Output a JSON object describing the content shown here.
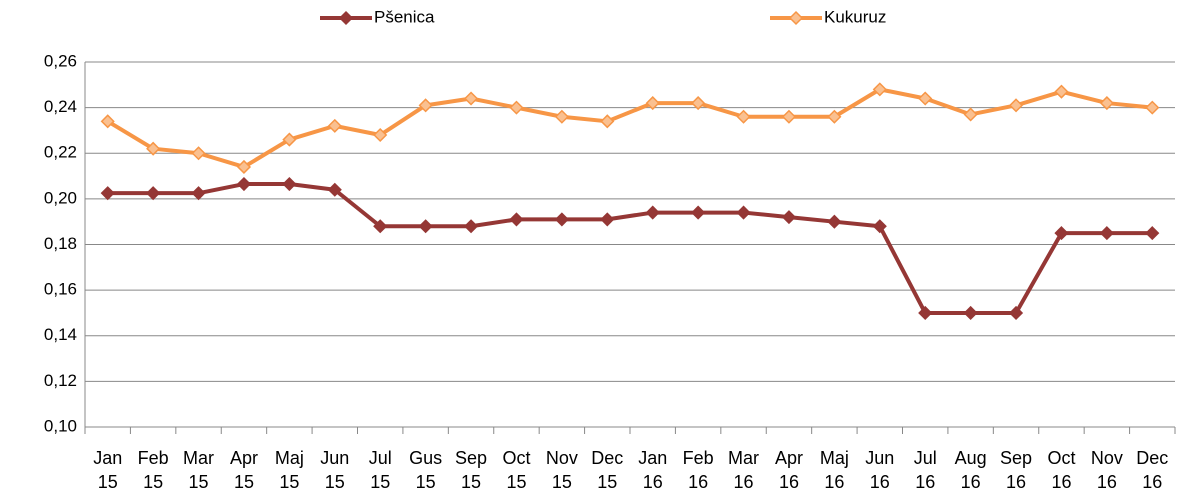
{
  "chart_data": {
    "type": "line",
    "categories": [
      "Jan 15",
      "Feb 15",
      "Mar 15",
      "Apr 15",
      "Maj 15",
      "Jun 15",
      "Jul 15",
      "Gus 15",
      "Sep 15",
      "Oct 15",
      "Nov 15",
      "Dec 15",
      "Jan 16",
      "Feb 16",
      "Mar 16",
      "Apr 16",
      "Maj 16",
      "Jun 16",
      "Jul 16",
      "Aug 16",
      "Sep 16",
      "Oct 16",
      "Nov 16",
      "Dec 16"
    ],
    "series": [
      {
        "name": "Pšenica",
        "color": "#953735",
        "values": [
          0.2025,
          0.2025,
          0.2025,
          0.2065,
          0.2065,
          0.204,
          0.188,
          0.188,
          0.188,
          0.191,
          0.191,
          0.191,
          0.194,
          0.194,
          0.194,
          0.192,
          0.19,
          0.188,
          0.15,
          0.15,
          0.15,
          0.185,
          0.185,
          0.185
        ]
      },
      {
        "name": "Kukuruz",
        "color": "#f79646",
        "values": [
          0.234,
          0.222,
          0.22,
          0.214,
          0.226,
          0.232,
          0.228,
          0.241,
          0.244,
          0.24,
          0.236,
          0.234,
          0.242,
          0.242,
          0.236,
          0.236,
          0.236,
          0.248,
          0.244,
          0.237,
          0.241,
          0.247,
          0.242,
          0.24
        ]
      }
    ],
    "ylim": [
      0.1,
      0.26
    ],
    "yticks": [
      {
        "value": 0.1,
        "label": "0,10"
      },
      {
        "value": 0.12,
        "label": "0,12"
      },
      {
        "value": 0.14,
        "label": "0,14"
      },
      {
        "value": 0.16,
        "label": "0,16"
      },
      {
        "value": 0.18,
        "label": "0,18"
      },
      {
        "value": 0.2,
        "label": "0,20"
      },
      {
        "value": 0.22,
        "label": "0,22"
      },
      {
        "value": 0.24,
        "label": "0,24"
      },
      {
        "value": 0.26,
        "label": "0,26"
      }
    ],
    "grid": true,
    "legend": "top"
  }
}
